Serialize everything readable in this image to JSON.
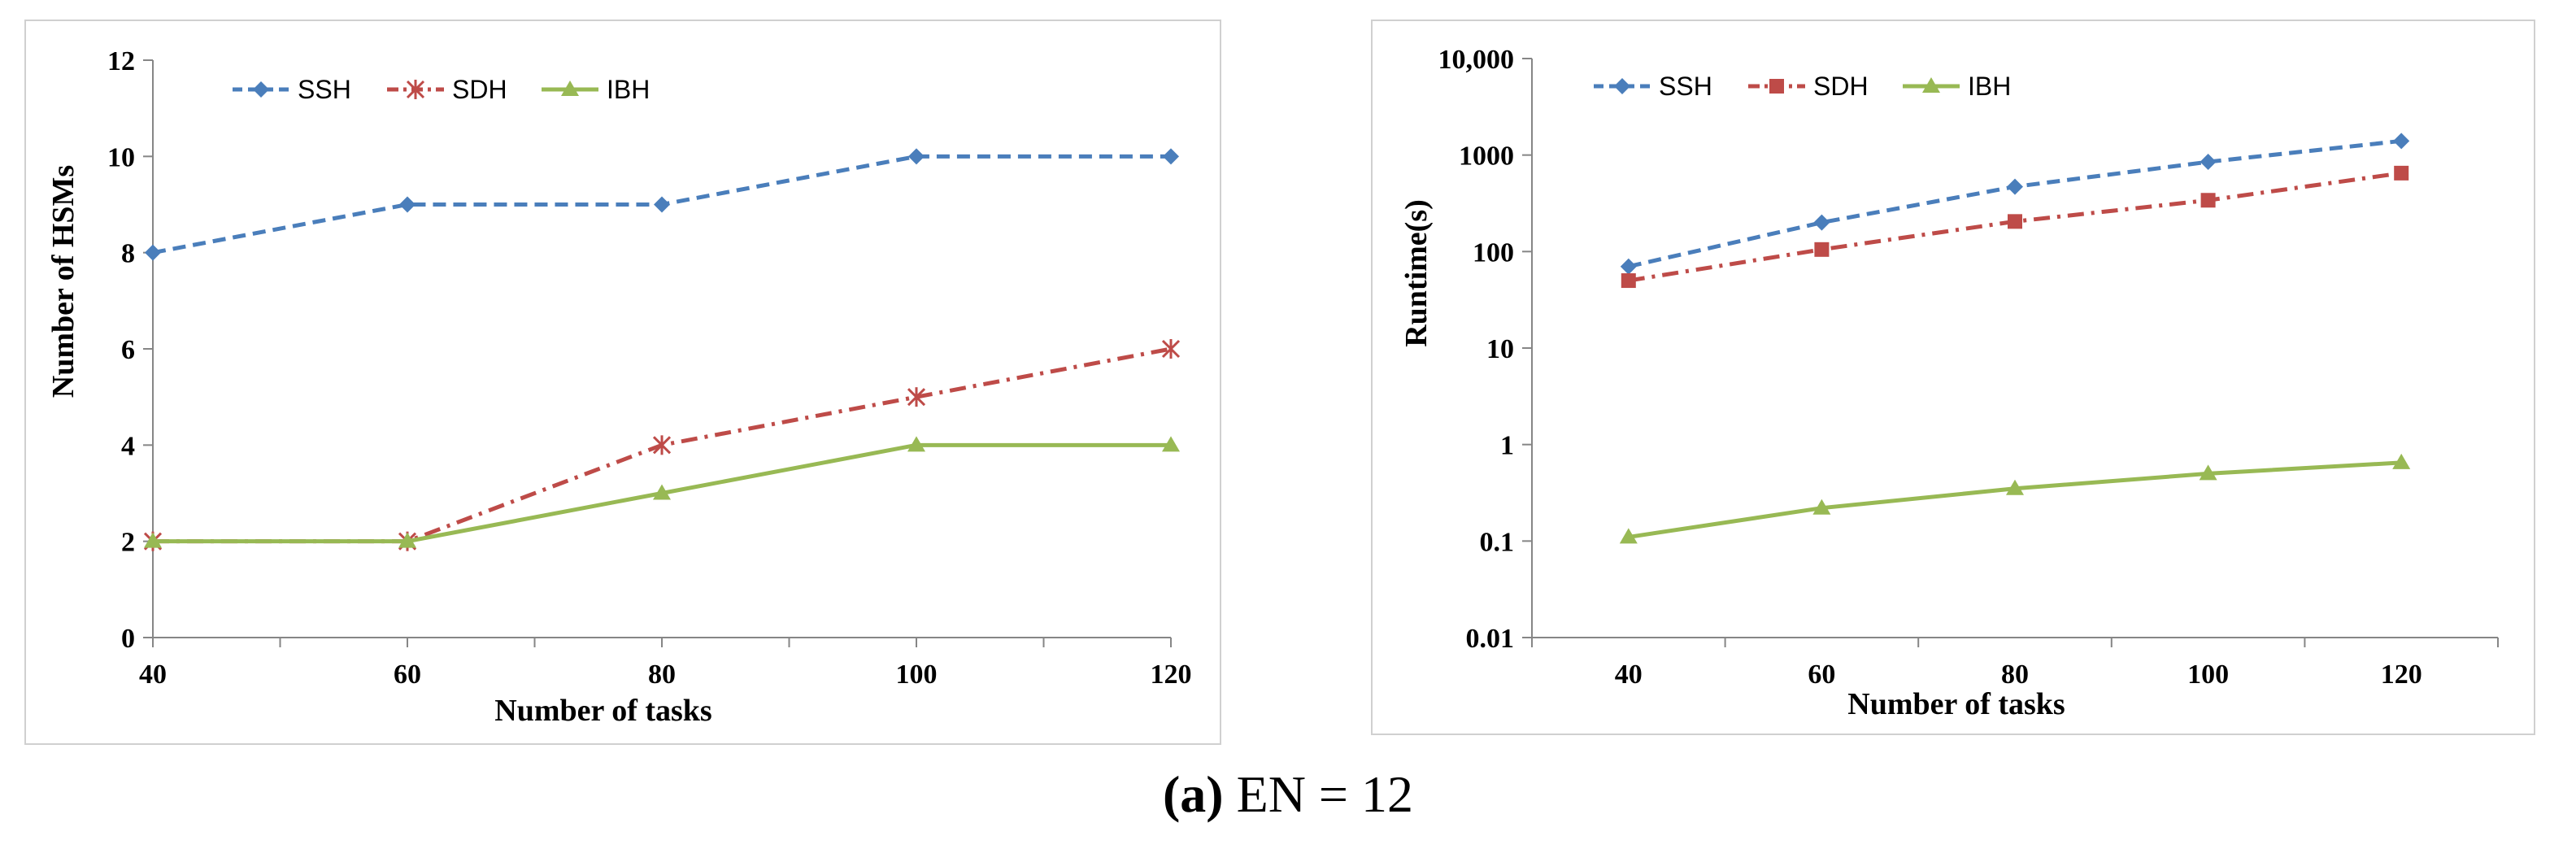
{
  "chart_data": [
    {
      "type": "line",
      "title": "",
      "xlabel": "Number of tasks",
      "ylabel": "Number of HSMs",
      "x": [
        40,
        60,
        80,
        100,
        120
      ],
      "x_tick_labels": [
        "40",
        "60",
        "80",
        "100",
        "120"
      ],
      "ylim": [
        0,
        12
      ],
      "y_ticks": [
        0,
        2,
        4,
        6,
        8,
        10,
        12
      ],
      "y_tick_labels": [
        "0",
        "2",
        "4",
        "6",
        "8",
        "10",
        "12"
      ],
      "y_scale": "linear",
      "grid": false,
      "legend_position": "top-left",
      "series": [
        {
          "name": "SSH",
          "values": [
            8,
            9,
            9,
            10,
            10
          ],
          "color": "#4a7ebb",
          "marker": "diamond",
          "dash": "dashed"
        },
        {
          "name": "SDH",
          "values": [
            2,
            2,
            4,
            5,
            6
          ],
          "color": "#be4b48",
          "marker": "star",
          "dash": "dashdot"
        },
        {
          "name": "IBH",
          "values": [
            2,
            2,
            3,
            4,
            4
          ],
          "color": "#98b954",
          "marker": "triangle",
          "dash": "solid"
        }
      ]
    },
    {
      "type": "line",
      "title": "",
      "xlabel": "Number of tasks",
      "ylabel": "Runtime(s)",
      "x": [
        40,
        60,
        80,
        100,
        120
      ],
      "x_tick_labels": [
        "40",
        "60",
        "80",
        "100",
        "120"
      ],
      "ylim": [
        0.01,
        10000
      ],
      "y_ticks": [
        0.01,
        0.1,
        1,
        10,
        100,
        1000,
        10000
      ],
      "y_tick_labels": [
        "0.01",
        "0.1",
        "1",
        "10",
        "100",
        "1000",
        "10,000"
      ],
      "y_scale": "log",
      "grid": false,
      "legend_position": "top-left",
      "series": [
        {
          "name": "SSH",
          "values": [
            70,
            200,
            470,
            850,
            1400
          ],
          "color": "#4a7ebb",
          "marker": "diamond",
          "dash": "dashed"
        },
        {
          "name": "SDH",
          "values": [
            50,
            105,
            205,
            340,
            650
          ],
          "color": "#be4b48",
          "marker": "square",
          "dash": "dashdot"
        },
        {
          "name": "IBH",
          "values": [
            0.11,
            0.22,
            0.35,
            0.5,
            0.65
          ],
          "color": "#98b954",
          "marker": "triangle",
          "dash": "solid"
        }
      ]
    }
  ],
  "caption": {
    "tag": "(a)",
    "text": "EN = 12"
  }
}
